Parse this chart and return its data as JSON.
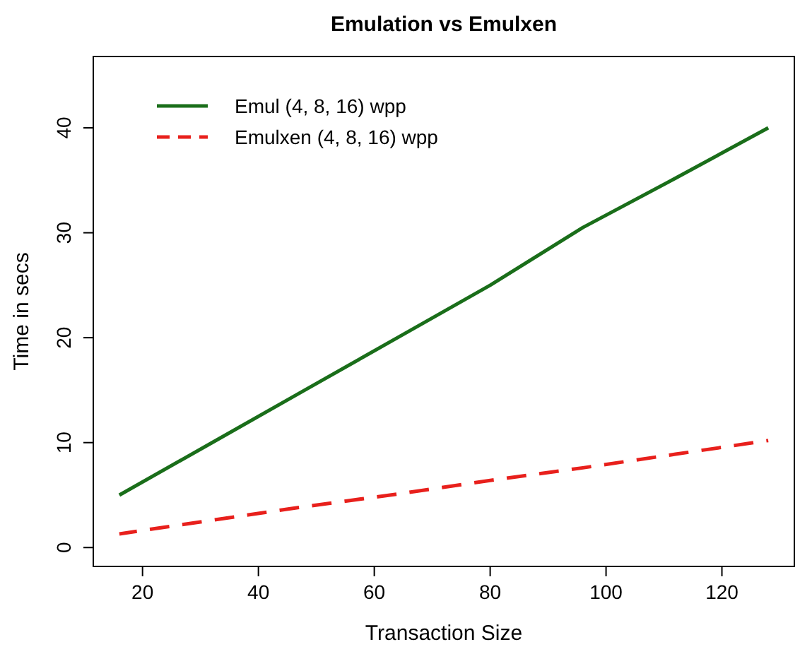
{
  "chart_data": {
    "type": "line",
    "title": "Emulation vs Emulxen",
    "xlabel": "Transaction Size",
    "ylabel": "Time in secs",
    "x": [
      16,
      32,
      48,
      64,
      80,
      96,
      112,
      128
    ],
    "series": [
      {
        "name": "Emul (4, 8, 16) wpp",
        "color": "#1a6e1a",
        "values": [
          5,
          10,
          15,
          20,
          25,
          30.5,
          35.2,
          40
        ],
        "line_style": "solid"
      },
      {
        "name": "Emulxen (4, 8, 16) wpp",
        "color": "#e8201c",
        "values": [
          1.3,
          2.6,
          3.9,
          5.1,
          6.4,
          7.6,
          8.9,
          10.2
        ],
        "line_style": "dashed"
      }
    ],
    "xlim": [
      11.5,
      132.5
    ],
    "ylim": [
      -1.8,
      46.8
    ],
    "xticks": [
      20,
      40,
      60,
      80,
      100,
      120
    ],
    "yticks": [
      0,
      10,
      20,
      30,
      40
    ],
    "legend": "top left",
    "grid": false
  }
}
